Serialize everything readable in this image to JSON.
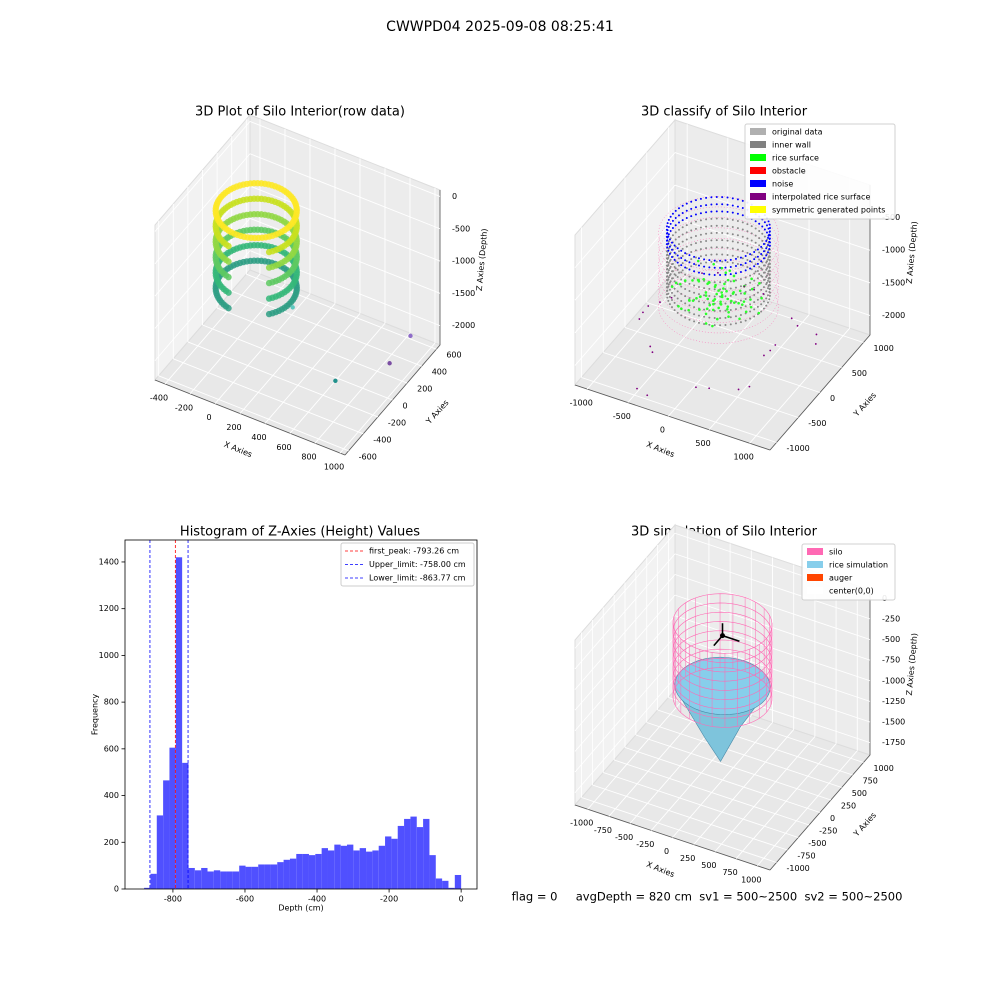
{
  "title": "CWWPD04 2025-09-08 08:25:41",
  "footer": "flag = 0     avgDepth = 820 cm  sv1 = 500~2500  sv2 = 500~2500",
  "chart_data": [
    {
      "type": "scatter3d",
      "title": "3D Plot of Silo Interior(row data)",
      "xlabel": "X Axies",
      "ylabel": "Y Axies",
      "zlabel": "Z Axies (Depth)",
      "xlim": [
        -480,
        1040
      ],
      "ylim": [
        -650,
        650
      ],
      "zlim": [
        -2300,
        100
      ],
      "xticks": [
        -400,
        -200,
        0,
        200,
        400,
        600,
        800,
        1000
      ],
      "yticks": [
        -600,
        -400,
        -200,
        0,
        200,
        400,
        600
      ],
      "zticks": [
        -2000,
        -1500,
        -1000,
        -500,
        0
      ]
    },
    {
      "type": "scatter3d",
      "title": "3D classify of Silo Interior",
      "xlabel": "X Axies",
      "ylabel": "Y Axies",
      "zlabel": "Z Axies (Depth)",
      "xlim": [
        -1150,
        1250
      ],
      "ylim": [
        -1150,
        1150
      ],
      "zlim": [
        -2300,
        0
      ],
      "xticks": [
        -1000,
        -500,
        0,
        500,
        1000
      ],
      "yticks": [
        -1000,
        -500,
        0,
        500,
        1000
      ],
      "zticks": [
        -2000,
        -1500,
        -1000,
        -500
      ],
      "legend": [
        {
          "name": "original data",
          "color": "#b0b0b0"
        },
        {
          "name": "inner wall",
          "color": "#808080"
        },
        {
          "name": "rice surface",
          "color": "#00ff00"
        },
        {
          "name": "obstacle",
          "color": "#ff0000"
        },
        {
          "name": "noise",
          "color": "#0000ff"
        },
        {
          "name": "interpolated rice surface",
          "color": "#800080"
        },
        {
          "name": "symmetric generated points",
          "color": "#ffff00"
        }
      ]
    },
    {
      "type": "histogram",
      "title": "Histogram of Z-Axies (Height) Values",
      "xlabel": "Depth (cm)",
      "ylabel": "Frequency",
      "color": "#5050ff",
      "xlim": [
        -933,
        44
      ],
      "ylim": [
        0,
        1494
      ],
      "xticks": [
        -800,
        -600,
        -400,
        -200,
        0
      ],
      "yticks": [
        0,
        200,
        400,
        600,
        800,
        1000,
        1200,
        1400
      ],
      "bins": [
        -880,
        -862.4,
        -844.8,
        -827.2,
        -809.6,
        -792,
        -774.4,
        -756.8,
        -739.2,
        -721.6,
        -704,
        -686.4,
        -668.8,
        -651.2,
        -633.6,
        -616,
        -598.4,
        -580.8,
        -563.2,
        -545.6,
        -528,
        -510.4,
        -492.8,
        -475.2,
        -457.6,
        -440,
        -422.4,
        -404.8,
        -387.2,
        -369.6,
        -352,
        -334.4,
        -316.8,
        -299.2,
        -281.6,
        -264,
        -246.4,
        -228.8,
        -211.2,
        -193.6,
        -176,
        -158.4,
        -140.8,
        -123.2,
        -105.6,
        -88,
        -70.4,
        -52.8,
        -35.2,
        -17.6,
        0
      ],
      "values": [
        5,
        65,
        315,
        465,
        605,
        1420,
        540,
        90,
        80,
        90,
        75,
        80,
        75,
        75,
        75,
        100,
        95,
        95,
        105,
        105,
        105,
        115,
        125,
        130,
        150,
        150,
        145,
        150,
        175,
        165,
        190,
        185,
        190,
        165,
        175,
        160,
        165,
        185,
        225,
        215,
        270,
        300,
        310,
        265,
        300,
        145,
        45,
        35,
        5,
        60
      ],
      "ref_lines": [
        {
          "label": "first_peak: -793.26 cm",
          "value": -793.26,
          "color": "#ff0000"
        },
        {
          "label": "Upper_limit: -758.00 cm",
          "value": -758.0,
          "color": "#0000ff"
        },
        {
          "label": "Lower_limit: -863.77 cm",
          "value": -863.77,
          "color": "#0000ff"
        }
      ]
    },
    {
      "type": "surface3d",
      "title": "3D simulation of Silo Interior",
      "xlabel": "X Axies",
      "ylabel": "Y Axies",
      "zlabel": "Z Axies (Depth)",
      "xlim": [
        -1150,
        1150
      ],
      "ylim": [
        -1150,
        1150
      ],
      "zlim": [
        -1900,
        100
      ],
      "xticks": [
        -1000,
        -750,
        -500,
        -250,
        0,
        250,
        500,
        750,
        1000
      ],
      "yticks": [
        -1000,
        -750,
        -500,
        -250,
        0,
        250,
        500,
        750,
        1000
      ],
      "zticks": [
        -1750,
        -1500,
        -1250,
        -1000,
        -750,
        -500,
        -250,
        0
      ],
      "legend": [
        {
          "name": "silo",
          "color": "#ff69b4"
        },
        {
          "name": "rice simulation",
          "color": "#87ceeb"
        },
        {
          "name": "auger",
          "color": "#ff4500"
        },
        {
          "name": "center(0,0)",
          "color": "#ffffff"
        }
      ]
    }
  ]
}
